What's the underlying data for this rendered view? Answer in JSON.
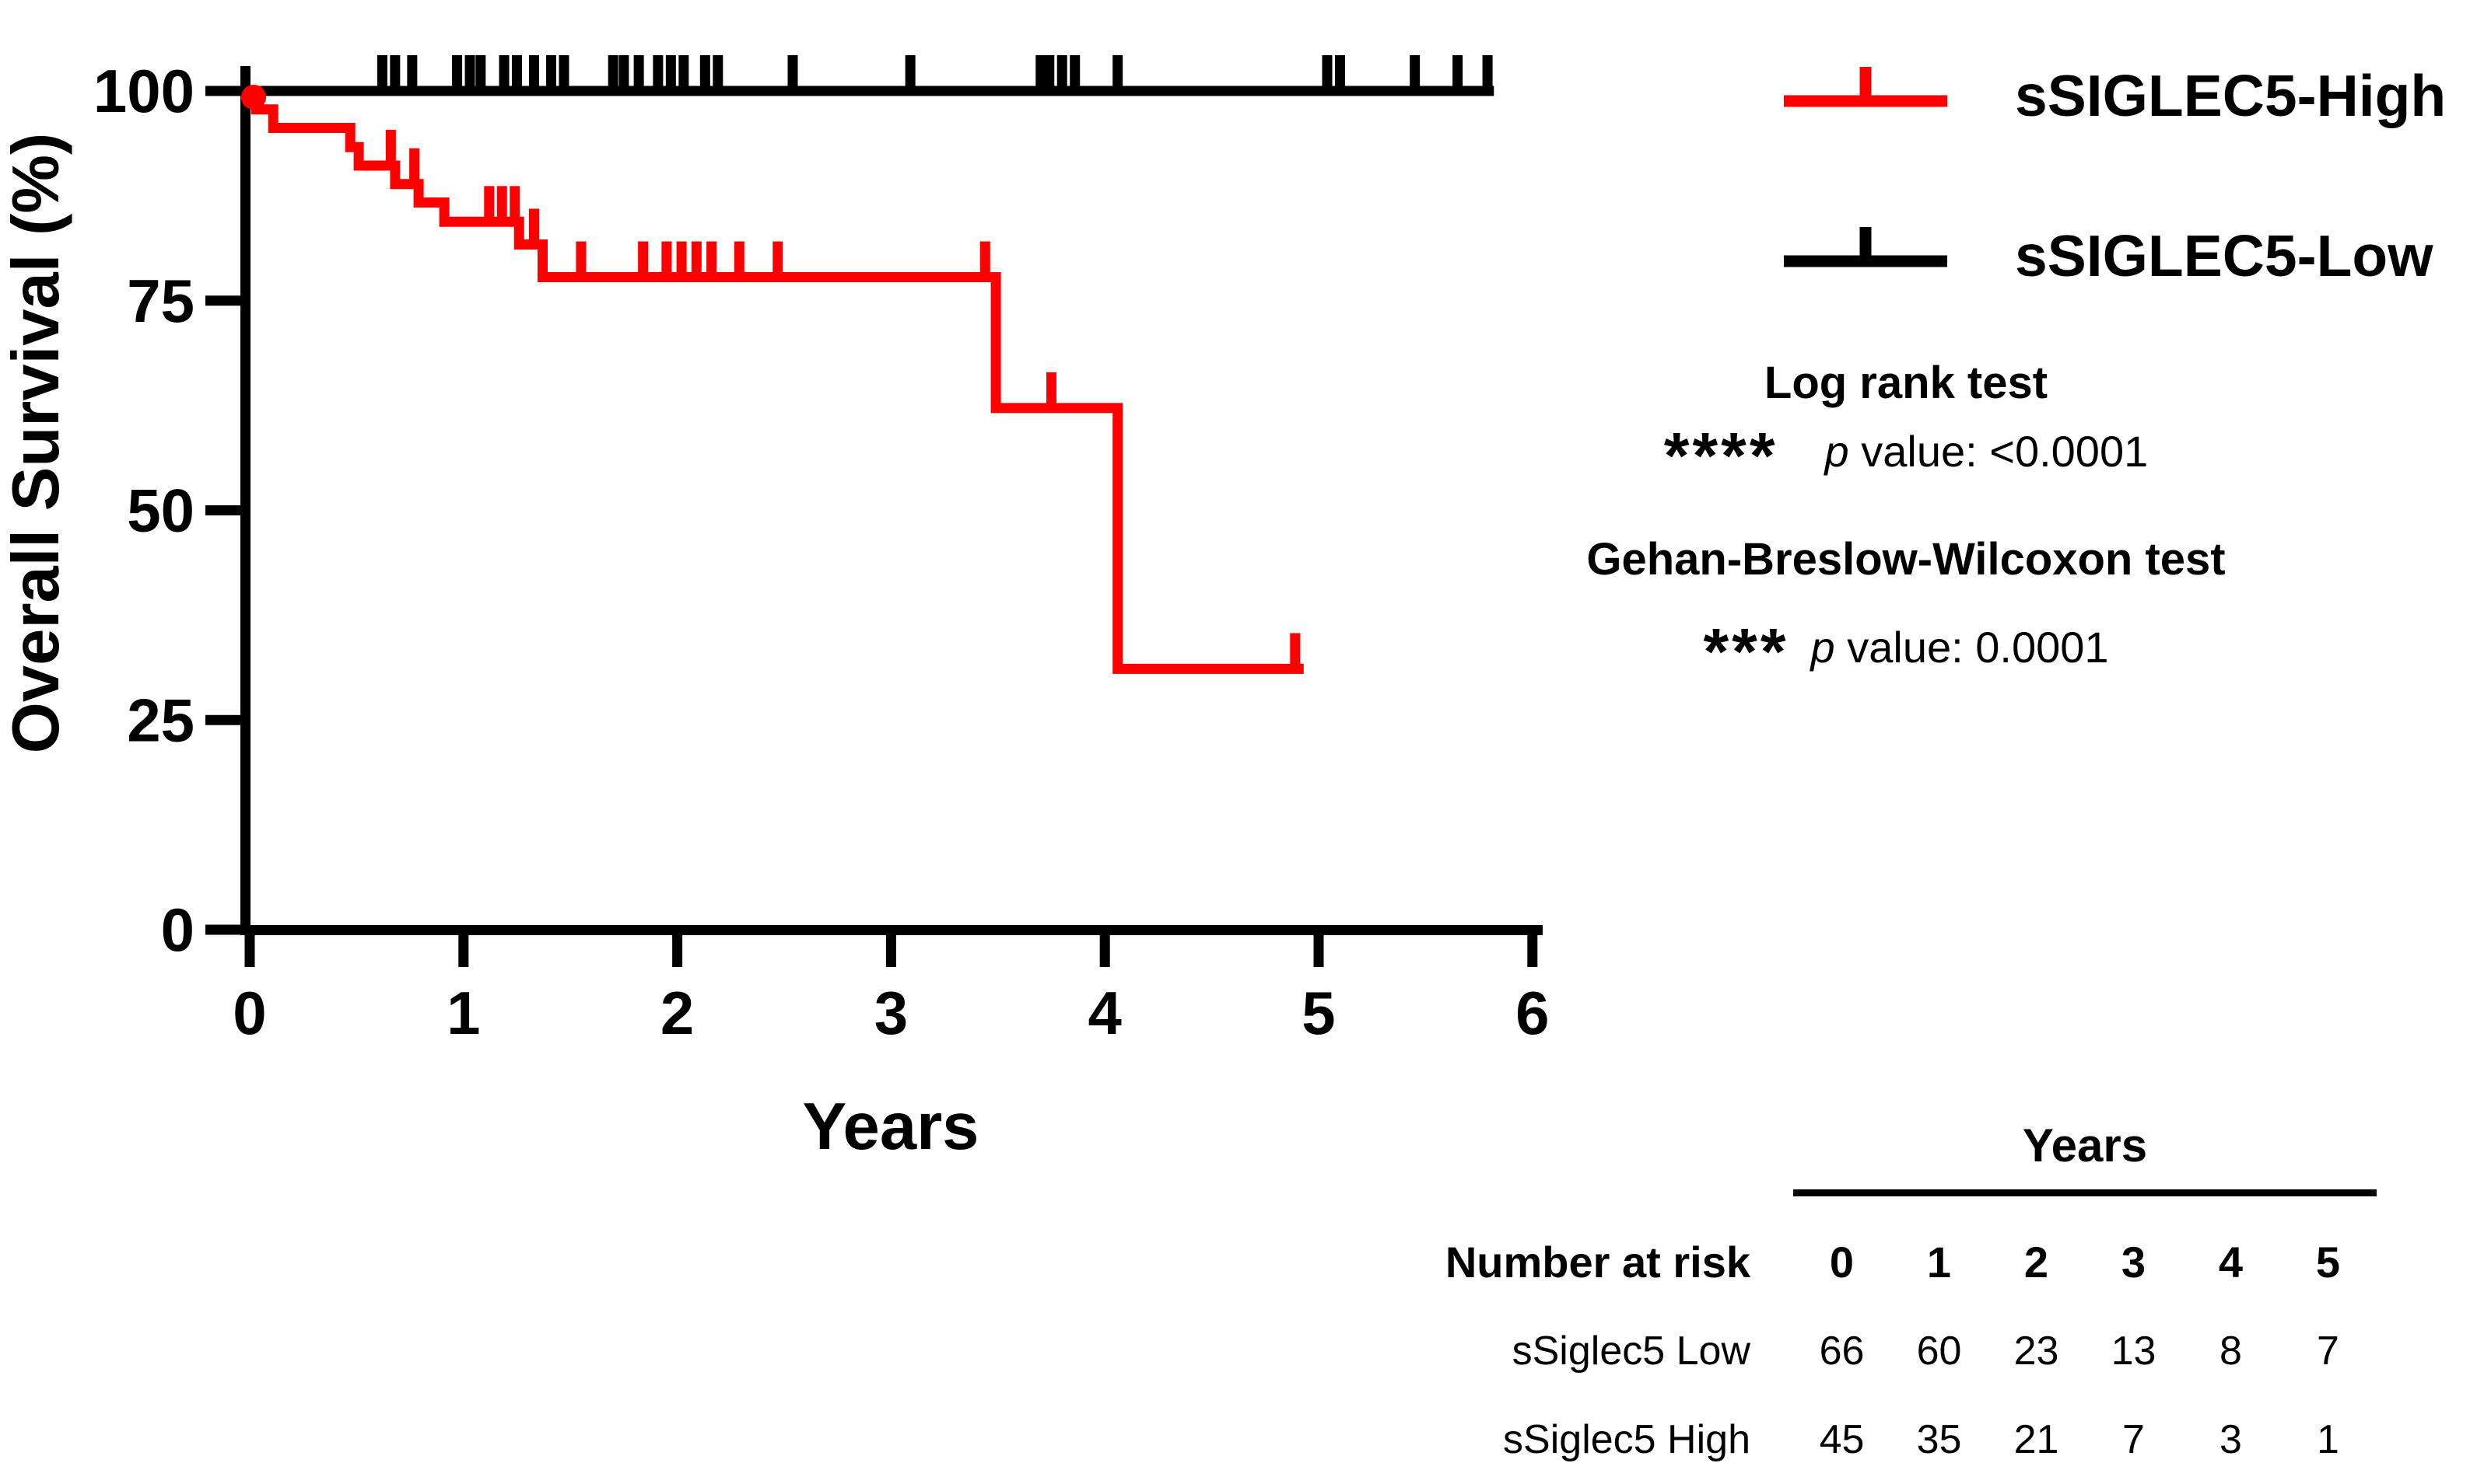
{
  "chart_data": {
    "type": "line",
    "subtype": "kaplan-meier-survival",
    "title": "",
    "xlabel": "Years",
    "ylabel": "Overall Survival (%)",
    "x_ticks": [
      0,
      1,
      2,
      3,
      4,
      5,
      6
    ],
    "y_ticks": [
      100,
      75,
      50,
      25,
      0
    ],
    "xlim": [
      0,
      6
    ],
    "ylim": [
      0,
      100
    ],
    "grid": false,
    "legend_position": "top-right",
    "series": [
      {
        "name": "sSIGLEC5-High",
        "color": "#ff0000",
        "start_survival": 100,
        "steps": [
          [
            0.03,
            97.8
          ],
          [
            0.11,
            95.6
          ],
          [
            0.47,
            93.3
          ],
          [
            0.51,
            91.1
          ],
          [
            0.68,
            88.9
          ],
          [
            0.79,
            86.7
          ],
          [
            0.91,
            84.4
          ],
          [
            1.26,
            81.7
          ],
          [
            1.37,
            77.8
          ],
          [
            3.49,
            62.2
          ],
          [
            4.06,
            31.1
          ]
        ],
        "end_time": 4.93,
        "censor_times": [
          0.66,
          0.77,
          1.12,
          1.18,
          1.24,
          1.33,
          1.55,
          1.84,
          1.95,
          2.02,
          2.09,
          2.16,
          2.29,
          2.47,
          3.44,
          3.75,
          4.89
        ]
      },
      {
        "name": "sSIGLEC5-Low",
        "color": "#000000",
        "start_survival": 100,
        "steps": [],
        "end_time": 5.82,
        "censor_times": [
          0.62,
          0.68,
          0.76,
          0.97,
          1.03,
          1.08,
          1.19,
          1.25,
          1.33,
          1.41,
          1.47,
          1.7,
          1.75,
          1.82,
          1.91,
          1.97,
          2.03,
          2.13,
          2.19,
          2.54,
          3.09,
          3.7,
          3.74,
          3.8,
          3.86,
          4.06,
          5.04,
          5.1,
          5.45,
          5.65,
          5.79
        ]
      }
    ]
  },
  "legend": {
    "high_label": "sSIGLEC5-High",
    "low_label": "sSIGLEC5-Low",
    "high_color": "#ff0000",
    "low_color": "#000000"
  },
  "stats": {
    "test1_title": "Log rank test",
    "test1_stars": "****",
    "test1_p_symbol": "p",
    "test1_p_text": "value: <0.0001",
    "test2_title": "Gehan-Breslow-Wilcoxon test",
    "test2_stars": "***",
    "test2_p_symbol": "p",
    "test2_p_text": "value: 0.0001"
  },
  "risk_table": {
    "header": "Years",
    "row_header": "Number at risk",
    "col_headers": [
      "0",
      "1",
      "2",
      "3",
      "4",
      "5"
    ],
    "rows": [
      {
        "label": "sSiglec5 Low",
        "values": [
          "66",
          "60",
          "23",
          "13",
          "8",
          "7"
        ]
      },
      {
        "label": "sSiglec5 High",
        "values": [
          "45",
          "35",
          "21",
          "7",
          "3",
          "1"
        ]
      }
    ]
  },
  "axes_text": {
    "x_title": "Years",
    "y_title": "Overall Survival (%)"
  }
}
